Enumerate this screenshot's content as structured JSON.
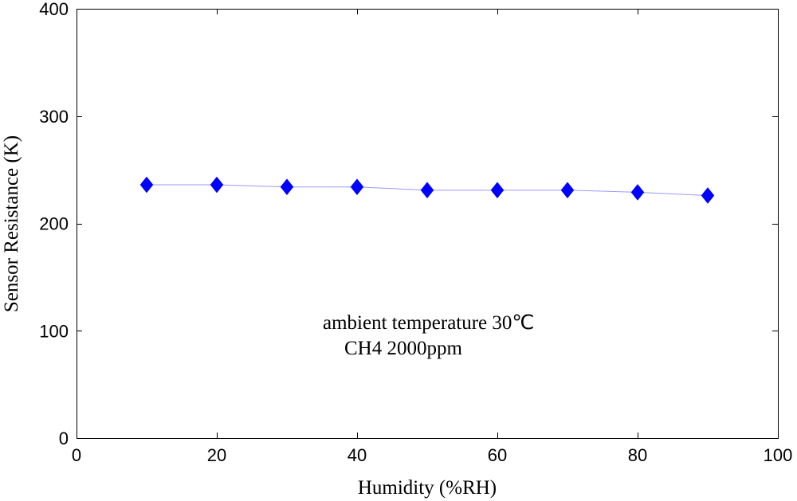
{
  "chart_data": {
    "type": "line",
    "title": "",
    "xlabel": "Humidity (%RH)",
    "ylabel": "Sensor Resistance (K)",
    "xlim": [
      0,
      100
    ],
    "ylim": [
      0,
      400
    ],
    "x_ticks": [
      "0",
      "20",
      "40",
      "60",
      "80",
      "100"
    ],
    "y_ticks": [
      "0",
      "100",
      "200",
      "300",
      "400"
    ],
    "grid": false,
    "annotations": [
      "ambient temperature 30℃",
      "CH4 2000ppm"
    ],
    "series": [
      {
        "x": [
          10,
          20,
          30,
          40,
          50,
          60,
          70,
          80,
          90
        ],
        "y": [
          236,
          236,
          234,
          234,
          231,
          231,
          231,
          229,
          226
        ],
        "color": "#0000ff",
        "line_color": "#9999ff",
        "marker": "diamond"
      }
    ]
  }
}
